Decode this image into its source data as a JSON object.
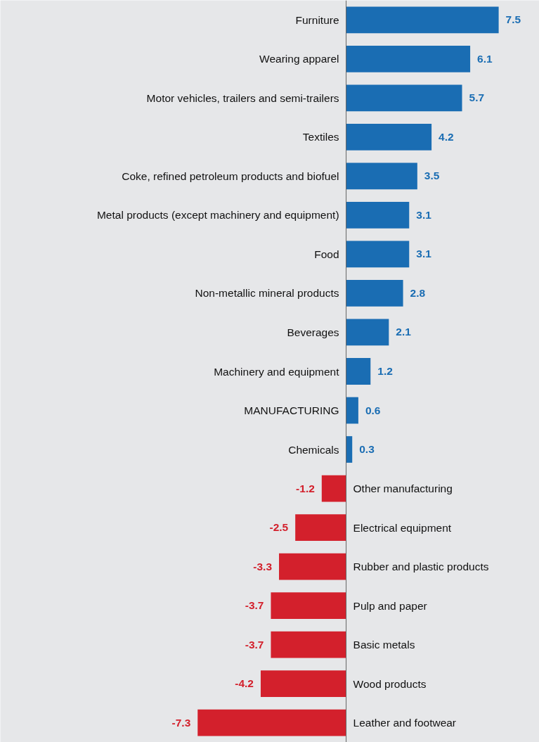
{
  "chart_data": {
    "type": "bar",
    "orientation": "horizontal",
    "categories": [
      "Furniture",
      "Wearing apparel",
      "Motor vehicles, trailers and semi-trailers",
      "Textiles",
      "Coke, refined petroleum products and biofuel",
      "Metal products (except machinery and equipment)",
      "Food",
      "Non-metallic mineral products",
      "Beverages",
      "Machinery and equipment",
      "MANUFACTURING",
      "Chemicals",
      "Other manufacturing",
      "Electrical equipment",
      "Rubber and plastic products",
      "Pulp and paper",
      "Basic metals",
      "Wood products",
      "Leather and footwear"
    ],
    "values": [
      7.5,
      6.1,
      5.7,
      4.2,
      3.5,
      3.1,
      3.1,
      2.8,
      2.1,
      1.2,
      0.6,
      0.3,
      -1.2,
      -2.5,
      -3.3,
      -3.7,
      -3.7,
      -4.2,
      -7.3
    ],
    "colors": [
      "#1a6db3",
      "#1a6db3",
      "#1a6db3",
      "#1a6db3",
      "#1a6db3",
      "#1a6db3",
      "#1a6db3",
      "#1a6db3",
      "#1a6db3",
      "#1a6db3",
      "#1a6db3",
      "#1a6db3",
      "#d3202c",
      "#d3202c",
      "#d3202c",
      "#d3202c",
      "#d3202c",
      "#d3202c",
      "#d3202c"
    ],
    "xlim": [
      -17,
      9.5
    ],
    "data_labels": true
  }
}
